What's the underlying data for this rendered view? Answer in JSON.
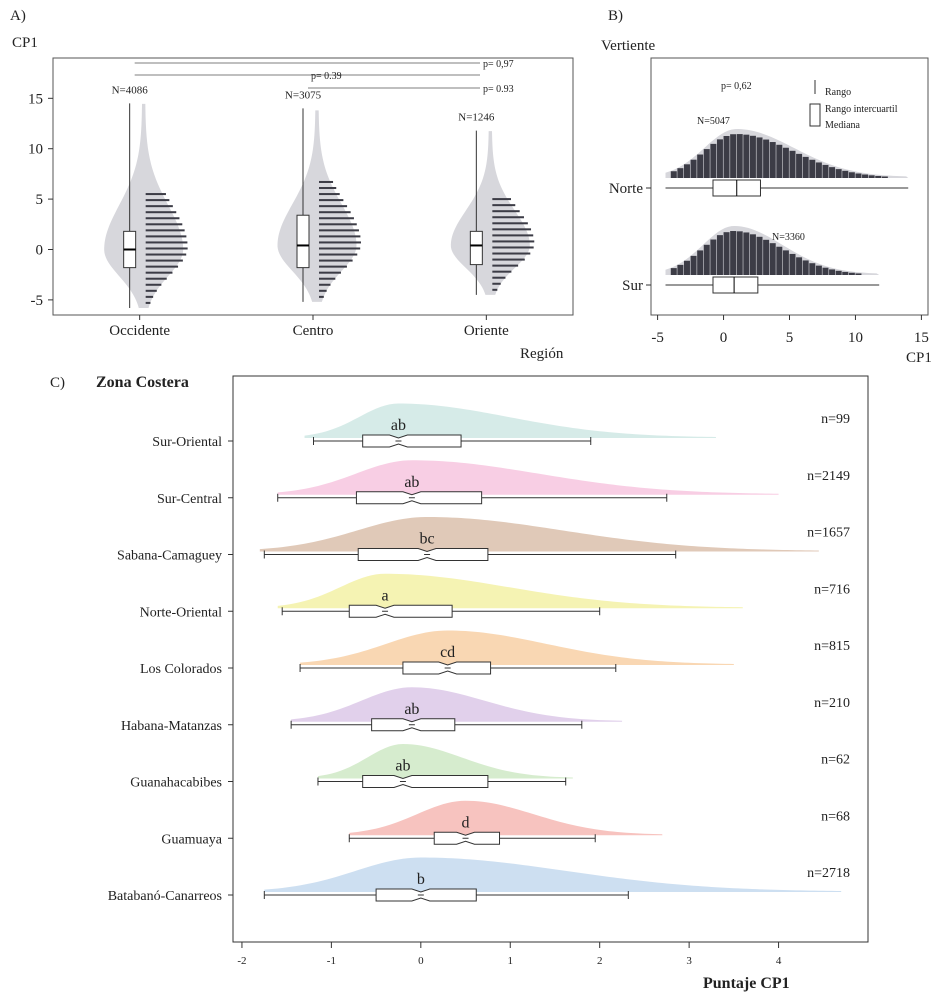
{
  "panel_a": {
    "label": "A)",
    "ylabel": "CP1",
    "xlabel": "Región",
    "p_values": [
      "p= 0,97",
      "p= 0.39",
      "p= 0.93"
    ]
  },
  "panel_b": {
    "label": "B)",
    "ylabel": "Vertiente",
    "xlabel": "CP1",
    "p_value": "p= 0,62",
    "legend": [
      "Rango",
      "Rango intercuartil",
      "Mediana"
    ]
  },
  "panel_c": {
    "label": "C)",
    "title": "Zona Costera",
    "xlabel": "Puntaje CP1"
  },
  "chart_data": [
    {
      "panel": "A",
      "type": "violin-box-histogram",
      "xlabel": "Región",
      "ylabel": "CP1",
      "ylim": [
        -6.5,
        19
      ],
      "yticks": [
        -5,
        0,
        5,
        10,
        15
      ],
      "categories": [
        "Occidente",
        "Centro",
        "Oriente"
      ],
      "series": [
        {
          "name": "Occidente",
          "n_label": "N=4086",
          "min": -5.8,
          "q1": -1.8,
          "median": 0.0,
          "q3": 1.8,
          "max": 14.5
        },
        {
          "name": "Centro",
          "n_label": "N=3075",
          "min": -5.2,
          "q1": -1.8,
          "median": 0.4,
          "q3": 3.4,
          "max": 14.0
        },
        {
          "name": "Oriente",
          "n_label": "N=1246",
          "min": -4.5,
          "q1": -1.5,
          "median": 0.4,
          "q3": 1.8,
          "max": 11.8
        }
      ],
      "comparisons": [
        {
          "groups": [
            "Occidente",
            "Oriente"
          ],
          "p": "p= 0,97"
        },
        {
          "groups": [
            "Occidente",
            "Centro"
          ],
          "p": "p= 0.39"
        },
        {
          "groups": [
            "Centro",
            "Oriente"
          ],
          "p": "p= 0.93"
        }
      ]
    },
    {
      "panel": "B",
      "type": "ridge-histogram-box",
      "xlabel": "CP1",
      "ylabel": "Vertiente",
      "xlim": [
        -5.5,
        15.5
      ],
      "xticks": [
        -5,
        0,
        5,
        10,
        15
      ],
      "categories": [
        "Norte",
        "Sur"
      ],
      "series": [
        {
          "name": "Norte",
          "n_label": "N=5047",
          "min": -4.4,
          "q1": -0.8,
          "median": 1.0,
          "q3": 2.8,
          "max": 14.0
        },
        {
          "name": "Sur",
          "n_label": "N=3360",
          "min": -4.4,
          "q1": -0.8,
          "median": 0.8,
          "q3": 2.6,
          "max": 11.8
        }
      ]
    },
    {
      "panel": "C",
      "type": "ridge-density-notched-box",
      "title": "Zona Costera",
      "xlabel": "Puntaje CP1",
      "xlim": [
        -2.1,
        5.0
      ],
      "xticks": [
        -2,
        -1,
        0,
        1,
        2,
        3,
        4
      ],
      "categories": [
        "Sur-Oriental",
        "Sur-Central",
        "Sabana-Camaguey",
        "Norte-Oriental",
        "Los Colorados",
        "Habana-Matanzas",
        "Guanahacabibes",
        "Guamuaya",
        "Batabanó-Canarreos"
      ],
      "series": [
        {
          "name": "Sur-Oriental",
          "n_label": "n=99",
          "group": "ab",
          "color": "#cfe8e4",
          "min": -1.2,
          "q1": -0.65,
          "median": -0.25,
          "q3": 0.45,
          "max": 1.9,
          "dmin": -1.3,
          "dmax": 3.3
        },
        {
          "name": "Sur-Central",
          "n_label": "n=2149",
          "group": "ab",
          "color": "#f7c5df",
          "min": -1.6,
          "q1": -0.72,
          "median": -0.1,
          "q3": 0.68,
          "max": 2.75,
          "dmin": -1.6,
          "dmax": 4.0
        },
        {
          "name": "Sabana-Camaguey",
          "n_label": "n=1657",
          "group": "bc",
          "color": "#dbbfac",
          "min": -1.75,
          "q1": -0.7,
          "median": 0.07,
          "q3": 0.75,
          "max": 2.85,
          "dmin": -1.8,
          "dmax": 4.45
        },
        {
          "name": "Norte-Oriental",
          "n_label": "n=716",
          "group": "a",
          "color": "#f3f1a6",
          "min": -1.55,
          "q1": -0.8,
          "median": -0.4,
          "q3": 0.35,
          "max": 2.0,
          "dmin": -1.6,
          "dmax": 3.6
        },
        {
          "name": "Los Colorados",
          "n_label": "n=815",
          "group": "cd",
          "color": "#f8d0a6",
          "min": -1.35,
          "q1": -0.2,
          "median": 0.3,
          "q3": 0.78,
          "max": 2.18,
          "dmin": -1.35,
          "dmax": 3.5
        },
        {
          "name": "Habana-Matanzas",
          "n_label": "n=210",
          "group": "ab",
          "color": "#dcc8e8",
          "min": -1.45,
          "q1": -0.55,
          "median": -0.1,
          "q3": 0.38,
          "max": 1.8,
          "dmin": -1.45,
          "dmax": 2.25
        },
        {
          "name": "Guanahacabibes",
          "n_label": "n=62",
          "group": "ab",
          "color": "#cfe9c6",
          "min": -1.15,
          "q1": -0.65,
          "median": -0.2,
          "q3": 0.75,
          "max": 1.62,
          "dmin": -1.15,
          "dmax": 1.7
        },
        {
          "name": "Guamuaya",
          "n_label": "n=68",
          "group": "d",
          "color": "#f6b8b4",
          "min": -0.8,
          "q1": 0.15,
          "median": 0.5,
          "q3": 0.88,
          "max": 1.95,
          "dmin": -0.8,
          "dmax": 2.7
        },
        {
          "name": "Batabanó-Canarreos",
          "n_label": "n=2718",
          "group": "b",
          "color": "#c4d9ef",
          "min": -1.75,
          "q1": -0.5,
          "median": 0.0,
          "q3": 0.62,
          "max": 2.32,
          "dmin": -1.75,
          "dmax": 4.7
        }
      ]
    }
  ]
}
